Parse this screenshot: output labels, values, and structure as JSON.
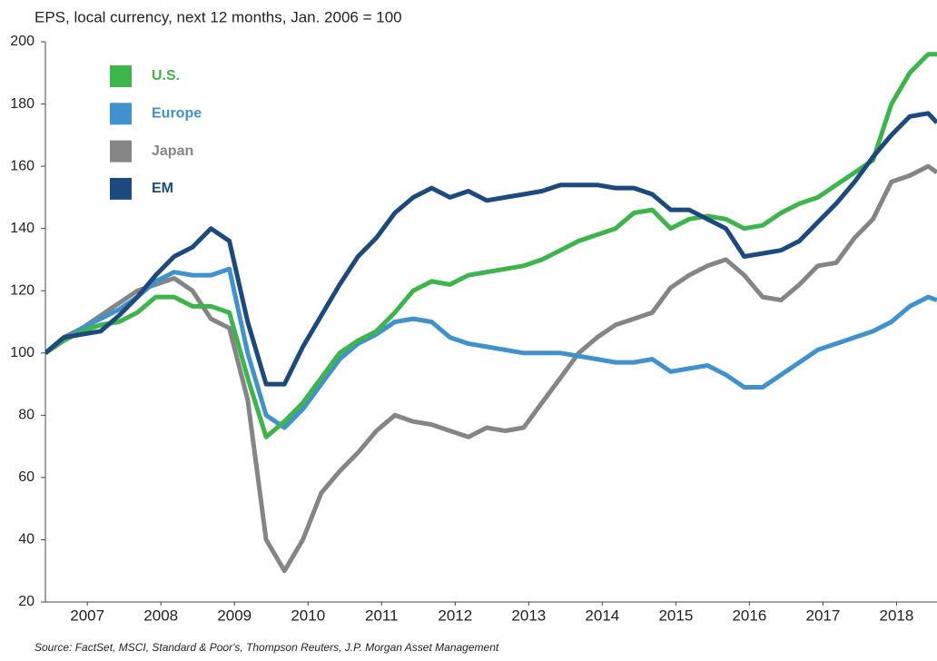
{
  "chart_data": {
    "type": "line",
    "title": "EPS, local currency, next 12 months, Jan. 2006 = 100",
    "source": "Source: FactSet, MSCI, Standard & Poor's, Thompson Reuters, J.P. Morgan Asset Management",
    "x": [
      2006.43,
      2006.68,
      2006.93,
      2007.18,
      2007.43,
      2007.68,
      2007.93,
      2008.18,
      2008.43,
      2008.68,
      2008.93,
      2009.18,
      2009.43,
      2009.68,
      2009.93,
      2010.18,
      2010.43,
      2010.68,
      2010.93,
      2011.18,
      2011.43,
      2011.68,
      2011.93,
      2012.18,
      2012.43,
      2012.68,
      2012.93,
      2013.18,
      2013.43,
      2013.68,
      2013.93,
      2014.18,
      2014.43,
      2014.68,
      2014.93,
      2015.18,
      2015.43,
      2015.68,
      2015.93,
      2016.18,
      2016.43,
      2016.68,
      2016.93,
      2017.18,
      2017.43,
      2017.68,
      2017.93,
      2018.18,
      2018.43,
      2018.55
    ],
    "series": [
      {
        "name": "U.S.",
        "color": "#3cb54a",
        "values": [
          100,
          104,
          107,
          109,
          110,
          113,
          118,
          118,
          115,
          115,
          113,
          92,
          73,
          78,
          84,
          92,
          100,
          104,
          107,
          113,
          120,
          123,
          122,
          125,
          126,
          127,
          128,
          130,
          133,
          136,
          138,
          140,
          145,
          146,
          140,
          143,
          144,
          143,
          140,
          141,
          145,
          148,
          150,
          154,
          158,
          162,
          180,
          190,
          196,
          196
        ]
      },
      {
        "name": "Europe",
        "color": "#4092cf",
        "values": [
          100,
          104,
          108,
          111,
          114,
          118,
          123,
          126,
          125,
          125,
          127,
          100,
          80,
          76,
          82,
          90,
          98,
          103,
          106,
          110,
          111,
          110,
          105,
          103,
          102,
          101,
          100,
          100,
          100,
          99,
          98,
          97,
          97,
          98,
          94,
          95,
          96,
          93,
          89,
          89,
          93,
          97,
          101,
          103,
          105,
          107,
          110,
          115,
          118,
          117
        ]
      },
      {
        "name": "Japan",
        "color": "#858585",
        "values": [
          100,
          105,
          108,
          112,
          116,
          120,
          122,
          124,
          120,
          111,
          108,
          85,
          40,
          30,
          40,
          55,
          62,
          68,
          75,
          80,
          78,
          77,
          75,
          73,
          76,
          75,
          76,
          84,
          92,
          100,
          105,
          109,
          111,
          113,
          121,
          125,
          128,
          130,
          125,
          118,
          117,
          122,
          128,
          129,
          137,
          143,
          155,
          157,
          160,
          158
        ]
      },
      {
        "name": "EM",
        "color": "#1c4a7e",
        "values": [
          100,
          105,
          106,
          107,
          112,
          118,
          125,
          131,
          134,
          140,
          136,
          110,
          90,
          90,
          102,
          112,
          122,
          131,
          137,
          145,
          150,
          153,
          150,
          152,
          149,
          150,
          151,
          152,
          154,
          154,
          154,
          153,
          153,
          151,
          146,
          146,
          143,
          140,
          131,
          132,
          133,
          136,
          142,
          148,
          155,
          163,
          170,
          176,
          177,
          174
        ]
      }
    ],
    "xlim": [
      2006.43,
      2018.55
    ],
    "xticks": [
      2007,
      2008,
      2009,
      2010,
      2011,
      2012,
      2013,
      2014,
      2015,
      2016,
      2017,
      2018
    ],
    "ylim": [
      20,
      200
    ],
    "yticks": [
      20,
      40,
      60,
      80,
      100,
      120,
      140,
      160,
      180,
      200
    ]
  }
}
